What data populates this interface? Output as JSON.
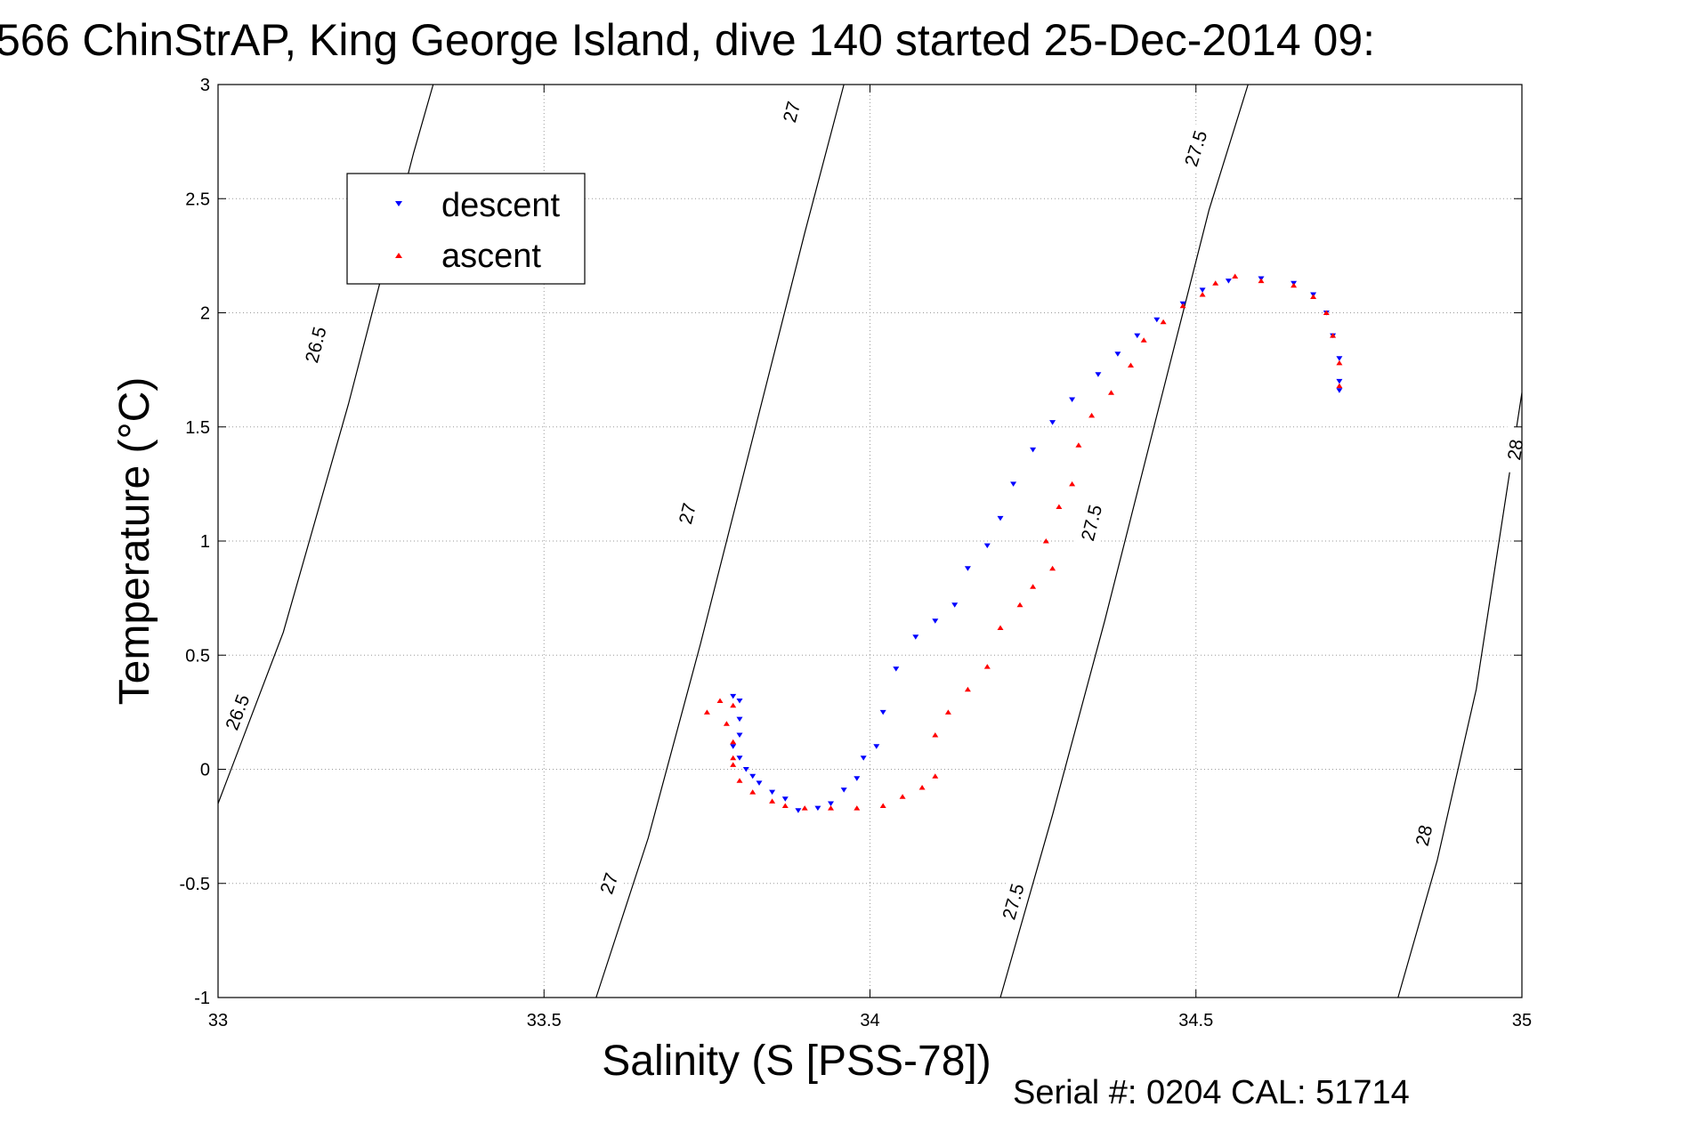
{
  "chart_data": {
    "type": "scatter",
    "title": "566 ChinStrAP, King George Island, dive 140 started 25-Dec-2014 09:",
    "xlabel": "Salinity (S [PSS-78])",
    "ylabel": "Temperature (°C)",
    "footer": "Serial #: 0204  CAL: 51714",
    "xlim": [
      33,
      35
    ],
    "ylim": [
      -1,
      3
    ],
    "xticks": [
      33,
      33.5,
      34,
      34.5,
      35
    ],
    "xtick_labels": [
      "33",
      "33.5",
      "34",
      "34.5",
      "35"
    ],
    "yticks": [
      -1,
      -0.5,
      0,
      0.5,
      1,
      1.5,
      2,
      2.5,
      3
    ],
    "ytick_labels": [
      "-1",
      "-0.5",
      "0",
      "0.5",
      "1",
      "1.5",
      "2",
      "2.5",
      "3"
    ],
    "grid": true,
    "legend_position": "top-left",
    "series": [
      {
        "name": "descent",
        "color": "#0000ff",
        "marker": "triangle-down",
        "points": [
          [
            33.79,
            0.32
          ],
          [
            33.8,
            0.3
          ],
          [
            33.8,
            0.22
          ],
          [
            33.8,
            0.15
          ],
          [
            33.79,
            0.1
          ],
          [
            33.8,
            0.05
          ],
          [
            33.81,
            0.0
          ],
          [
            33.82,
            -0.03
          ],
          [
            33.83,
            -0.06
          ],
          [
            33.85,
            -0.1
          ],
          [
            33.87,
            -0.13
          ],
          [
            33.89,
            -0.18
          ],
          [
            33.92,
            -0.17
          ],
          [
            33.94,
            -0.15
          ],
          [
            33.96,
            -0.09
          ],
          [
            33.98,
            -0.04
          ],
          [
            33.99,
            0.05
          ],
          [
            34.01,
            0.1
          ],
          [
            34.02,
            0.25
          ],
          [
            34.04,
            0.44
          ],
          [
            34.07,
            0.58
          ],
          [
            34.1,
            0.65
          ],
          [
            34.13,
            0.72
          ],
          [
            34.15,
            0.88
          ],
          [
            34.18,
            0.98
          ],
          [
            34.2,
            1.1
          ],
          [
            34.22,
            1.25
          ],
          [
            34.25,
            1.4
          ],
          [
            34.28,
            1.52
          ],
          [
            34.31,
            1.62
          ],
          [
            34.35,
            1.73
          ],
          [
            34.38,
            1.82
          ],
          [
            34.41,
            1.9
          ],
          [
            34.44,
            1.97
          ],
          [
            34.48,
            2.04
          ],
          [
            34.51,
            2.1
          ],
          [
            34.55,
            2.14
          ],
          [
            34.6,
            2.15
          ],
          [
            34.65,
            2.13
          ],
          [
            34.68,
            2.08
          ],
          [
            34.7,
            2.0
          ],
          [
            34.71,
            1.9
          ],
          [
            34.72,
            1.8
          ],
          [
            34.72,
            1.7
          ],
          [
            34.72,
            1.66
          ]
        ]
      },
      {
        "name": "ascent",
        "color": "#ff0000",
        "marker": "triangle-up",
        "points": [
          [
            33.77,
            0.3
          ],
          [
            33.75,
            0.25
          ],
          [
            33.79,
            0.28
          ],
          [
            33.78,
            0.2
          ],
          [
            33.79,
            0.12
          ],
          [
            33.79,
            0.05
          ],
          [
            33.79,
            0.02
          ],
          [
            33.8,
            -0.05
          ],
          [
            33.82,
            -0.1
          ],
          [
            33.85,
            -0.14
          ],
          [
            33.87,
            -0.16
          ],
          [
            33.9,
            -0.17
          ],
          [
            33.94,
            -0.17
          ],
          [
            33.98,
            -0.17
          ],
          [
            34.02,
            -0.16
          ],
          [
            34.05,
            -0.12
          ],
          [
            34.08,
            -0.08
          ],
          [
            34.1,
            -0.03
          ],
          [
            34.1,
            0.15
          ],
          [
            34.12,
            0.25
          ],
          [
            34.15,
            0.35
          ],
          [
            34.18,
            0.45
          ],
          [
            34.2,
            0.62
          ],
          [
            34.23,
            0.72
          ],
          [
            34.25,
            0.8
          ],
          [
            34.28,
            0.88
          ],
          [
            34.27,
            1.0
          ],
          [
            34.29,
            1.15
          ],
          [
            34.31,
            1.25
          ],
          [
            34.32,
            1.42
          ],
          [
            34.34,
            1.55
          ],
          [
            34.37,
            1.65
          ],
          [
            34.4,
            1.77
          ],
          [
            34.42,
            1.88
          ],
          [
            34.45,
            1.96
          ],
          [
            34.48,
            2.03
          ],
          [
            34.51,
            2.08
          ],
          [
            34.53,
            2.13
          ],
          [
            34.56,
            2.16
          ],
          [
            34.6,
            2.14
          ],
          [
            34.65,
            2.12
          ],
          [
            34.68,
            2.07
          ],
          [
            34.7,
            2.0
          ],
          [
            34.71,
            1.9
          ],
          [
            34.72,
            1.78
          ],
          [
            34.72,
            1.68
          ]
        ]
      }
    ],
    "contours": [
      {
        "label": "26.5",
        "points": [
          [
            33.0,
            -0.15
          ],
          [
            33.1,
            0.6
          ],
          [
            33.2,
            1.6
          ],
          [
            33.3,
            2.7
          ],
          [
            33.33,
            3.0
          ]
        ]
      },
      {
        "label": "27",
        "points": [
          [
            33.58,
            -1.0
          ],
          [
            33.66,
            -0.3
          ],
          [
            33.74,
            0.55
          ],
          [
            33.82,
            1.45
          ],
          [
            33.9,
            2.35
          ],
          [
            33.96,
            3.0
          ]
        ]
      },
      {
        "label": "27.5",
        "points": [
          [
            34.2,
            -1.0
          ],
          [
            34.28,
            -0.2
          ],
          [
            34.36,
            0.65
          ],
          [
            34.44,
            1.55
          ],
          [
            34.52,
            2.45
          ],
          [
            34.58,
            3.0
          ]
        ]
      },
      {
        "label": "28",
        "points": [
          [
            34.81,
            -1.0
          ],
          [
            34.87,
            -0.4
          ],
          [
            34.93,
            0.35
          ],
          [
            35.0,
            1.65
          ]
        ]
      }
    ],
    "contour_label_positions": [
      {
        "label": "26.5",
        "x": 33.15,
        "y": 1.86
      },
      {
        "label": "26.5",
        "x": 33.03,
        "y": 0.25
      },
      {
        "label": "27",
        "x": 33.88,
        "y": 2.88
      },
      {
        "label": "27",
        "x": 33.72,
        "y": 1.12
      },
      {
        "label": "27",
        "x": 33.6,
        "y": -0.5
      },
      {
        "label": "27.5",
        "x": 34.5,
        "y": 2.72
      },
      {
        "label": "27.5",
        "x": 34.34,
        "y": 1.08
      },
      {
        "label": "27.5",
        "x": 34.22,
        "y": -0.58
      },
      {
        "label": "28",
        "x": 34.99,
        "y": 1.4
      },
      {
        "label": "28",
        "x": 34.85,
        "y": -0.29
      }
    ]
  }
}
